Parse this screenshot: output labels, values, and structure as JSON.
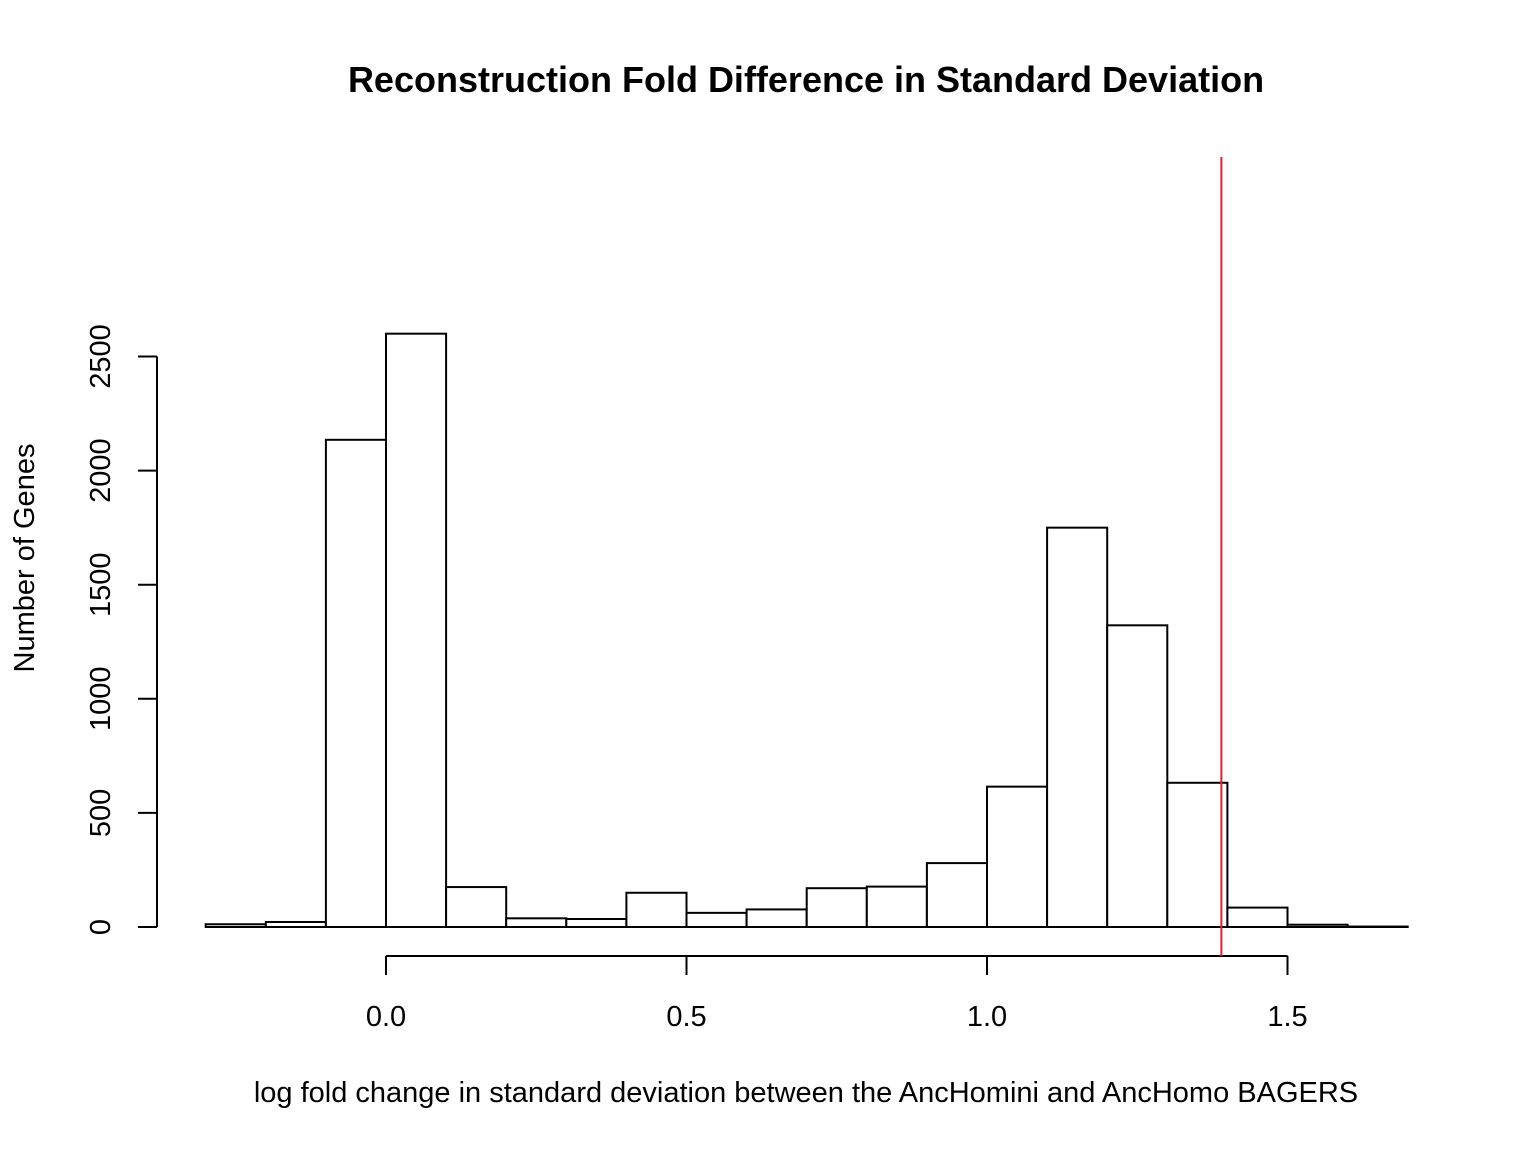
{
  "chart_data": {
    "type": "bar",
    "subtype": "histogram",
    "title": "Reconstruction Fold Difference in Standard Deviation",
    "xlabel": "log fold change in standard deviation between the AncHomini and AncHomo BAGERS",
    "ylabel": "Number of Genes",
    "bins": [
      {
        "start": -0.3,
        "end": -0.2,
        "count": 12
      },
      {
        "start": -0.2,
        "end": -0.1,
        "count": 22
      },
      {
        "start": -0.1,
        "end": 0.0,
        "count": 2135
      },
      {
        "start": 0.0,
        "end": 0.1,
        "count": 2600
      },
      {
        "start": 0.1,
        "end": 0.2,
        "count": 175
      },
      {
        "start": 0.2,
        "end": 0.3,
        "count": 38
      },
      {
        "start": 0.3,
        "end": 0.4,
        "count": 35
      },
      {
        "start": 0.4,
        "end": 0.5,
        "count": 150
      },
      {
        "start": 0.5,
        "end": 0.6,
        "count": 62
      },
      {
        "start": 0.6,
        "end": 0.7,
        "count": 77
      },
      {
        "start": 0.7,
        "end": 0.8,
        "count": 170
      },
      {
        "start": 0.8,
        "end": 0.9,
        "count": 177
      },
      {
        "start": 0.9,
        "end": 1.0,
        "count": 280
      },
      {
        "start": 1.0,
        "end": 1.1,
        "count": 615
      },
      {
        "start": 1.1,
        "end": 1.2,
        "count": 1750
      },
      {
        "start": 1.2,
        "end": 1.3,
        "count": 1322
      },
      {
        "start": 1.3,
        "end": 1.4,
        "count": 632
      },
      {
        "start": 1.4,
        "end": 1.5,
        "count": 85
      },
      {
        "start": 1.5,
        "end": 1.6,
        "count": 10
      },
      {
        "start": 1.6,
        "end": 1.7,
        "count": 2
      }
    ],
    "xlim": [
      -0.3,
      1.7
    ],
    "ylim": [
      0,
      2700
    ],
    "x_ticks": [
      0.0,
      0.5,
      1.0,
      1.5
    ],
    "x_tick_labels": [
      "0.0",
      "0.5",
      "1.0",
      "1.5"
    ],
    "y_ticks": [
      0,
      500,
      1000,
      1500,
      2000,
      2500
    ],
    "y_tick_labels": [
      "0",
      "500",
      "1000",
      "1500",
      "2000",
      "2500"
    ],
    "reference_line": {
      "x": 1.39,
      "color": "#e8202a"
    },
    "grid": false,
    "legend": "none",
    "bar_fill": "#ffffff",
    "bar_stroke": "#000000"
  }
}
